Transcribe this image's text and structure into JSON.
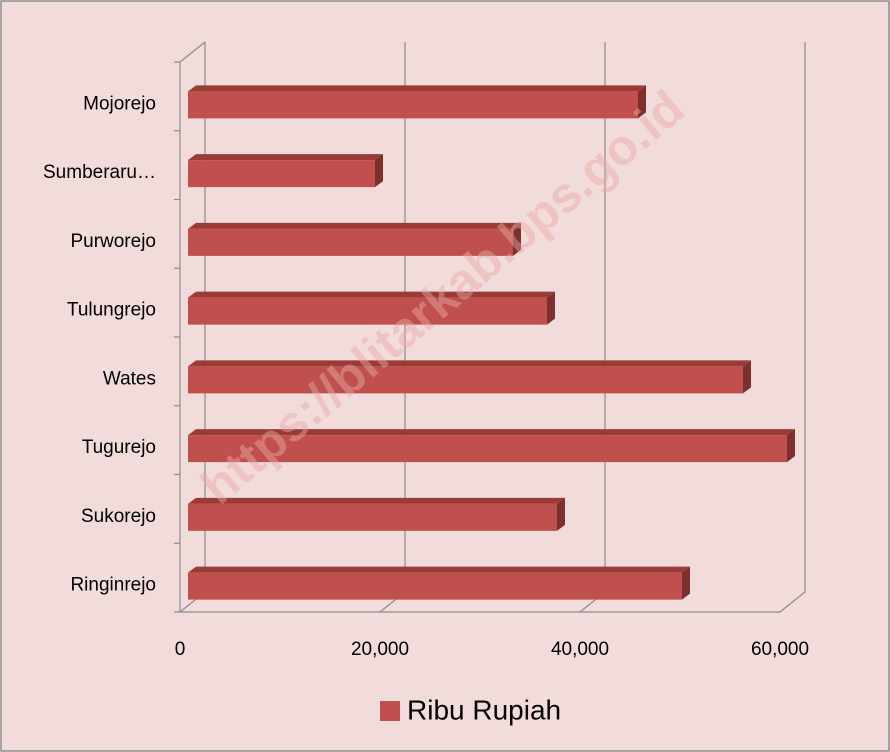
{
  "chart_data": {
    "type": "bar",
    "orientation": "horizontal",
    "three_d": true,
    "categories": [
      "Mojorejo",
      "Sumberaru…",
      "Purworejo",
      "Tulungrejo",
      "Wates",
      "Tugurejo",
      "Sukorejo",
      "Ringinrejo"
    ],
    "series": [
      {
        "name": "Ribu Rupiah",
        "color": "#c0504d",
        "values": [
          45800,
          19500,
          33300,
          36700,
          56300,
          60700,
          37700,
          50200
        ]
      }
    ],
    "xlim": [
      0,
      60000
    ],
    "xticks": [
      0,
      {
        "value": 20000,
        "label": "20,000"
      },
      {
        "value": 40000,
        "label": "40,000"
      },
      {
        "value": 60000,
        "label": "60,000"
      }
    ],
    "grid": true,
    "legend": "bottom",
    "watermark": "https://blitarkab.bps.go.id"
  }
}
